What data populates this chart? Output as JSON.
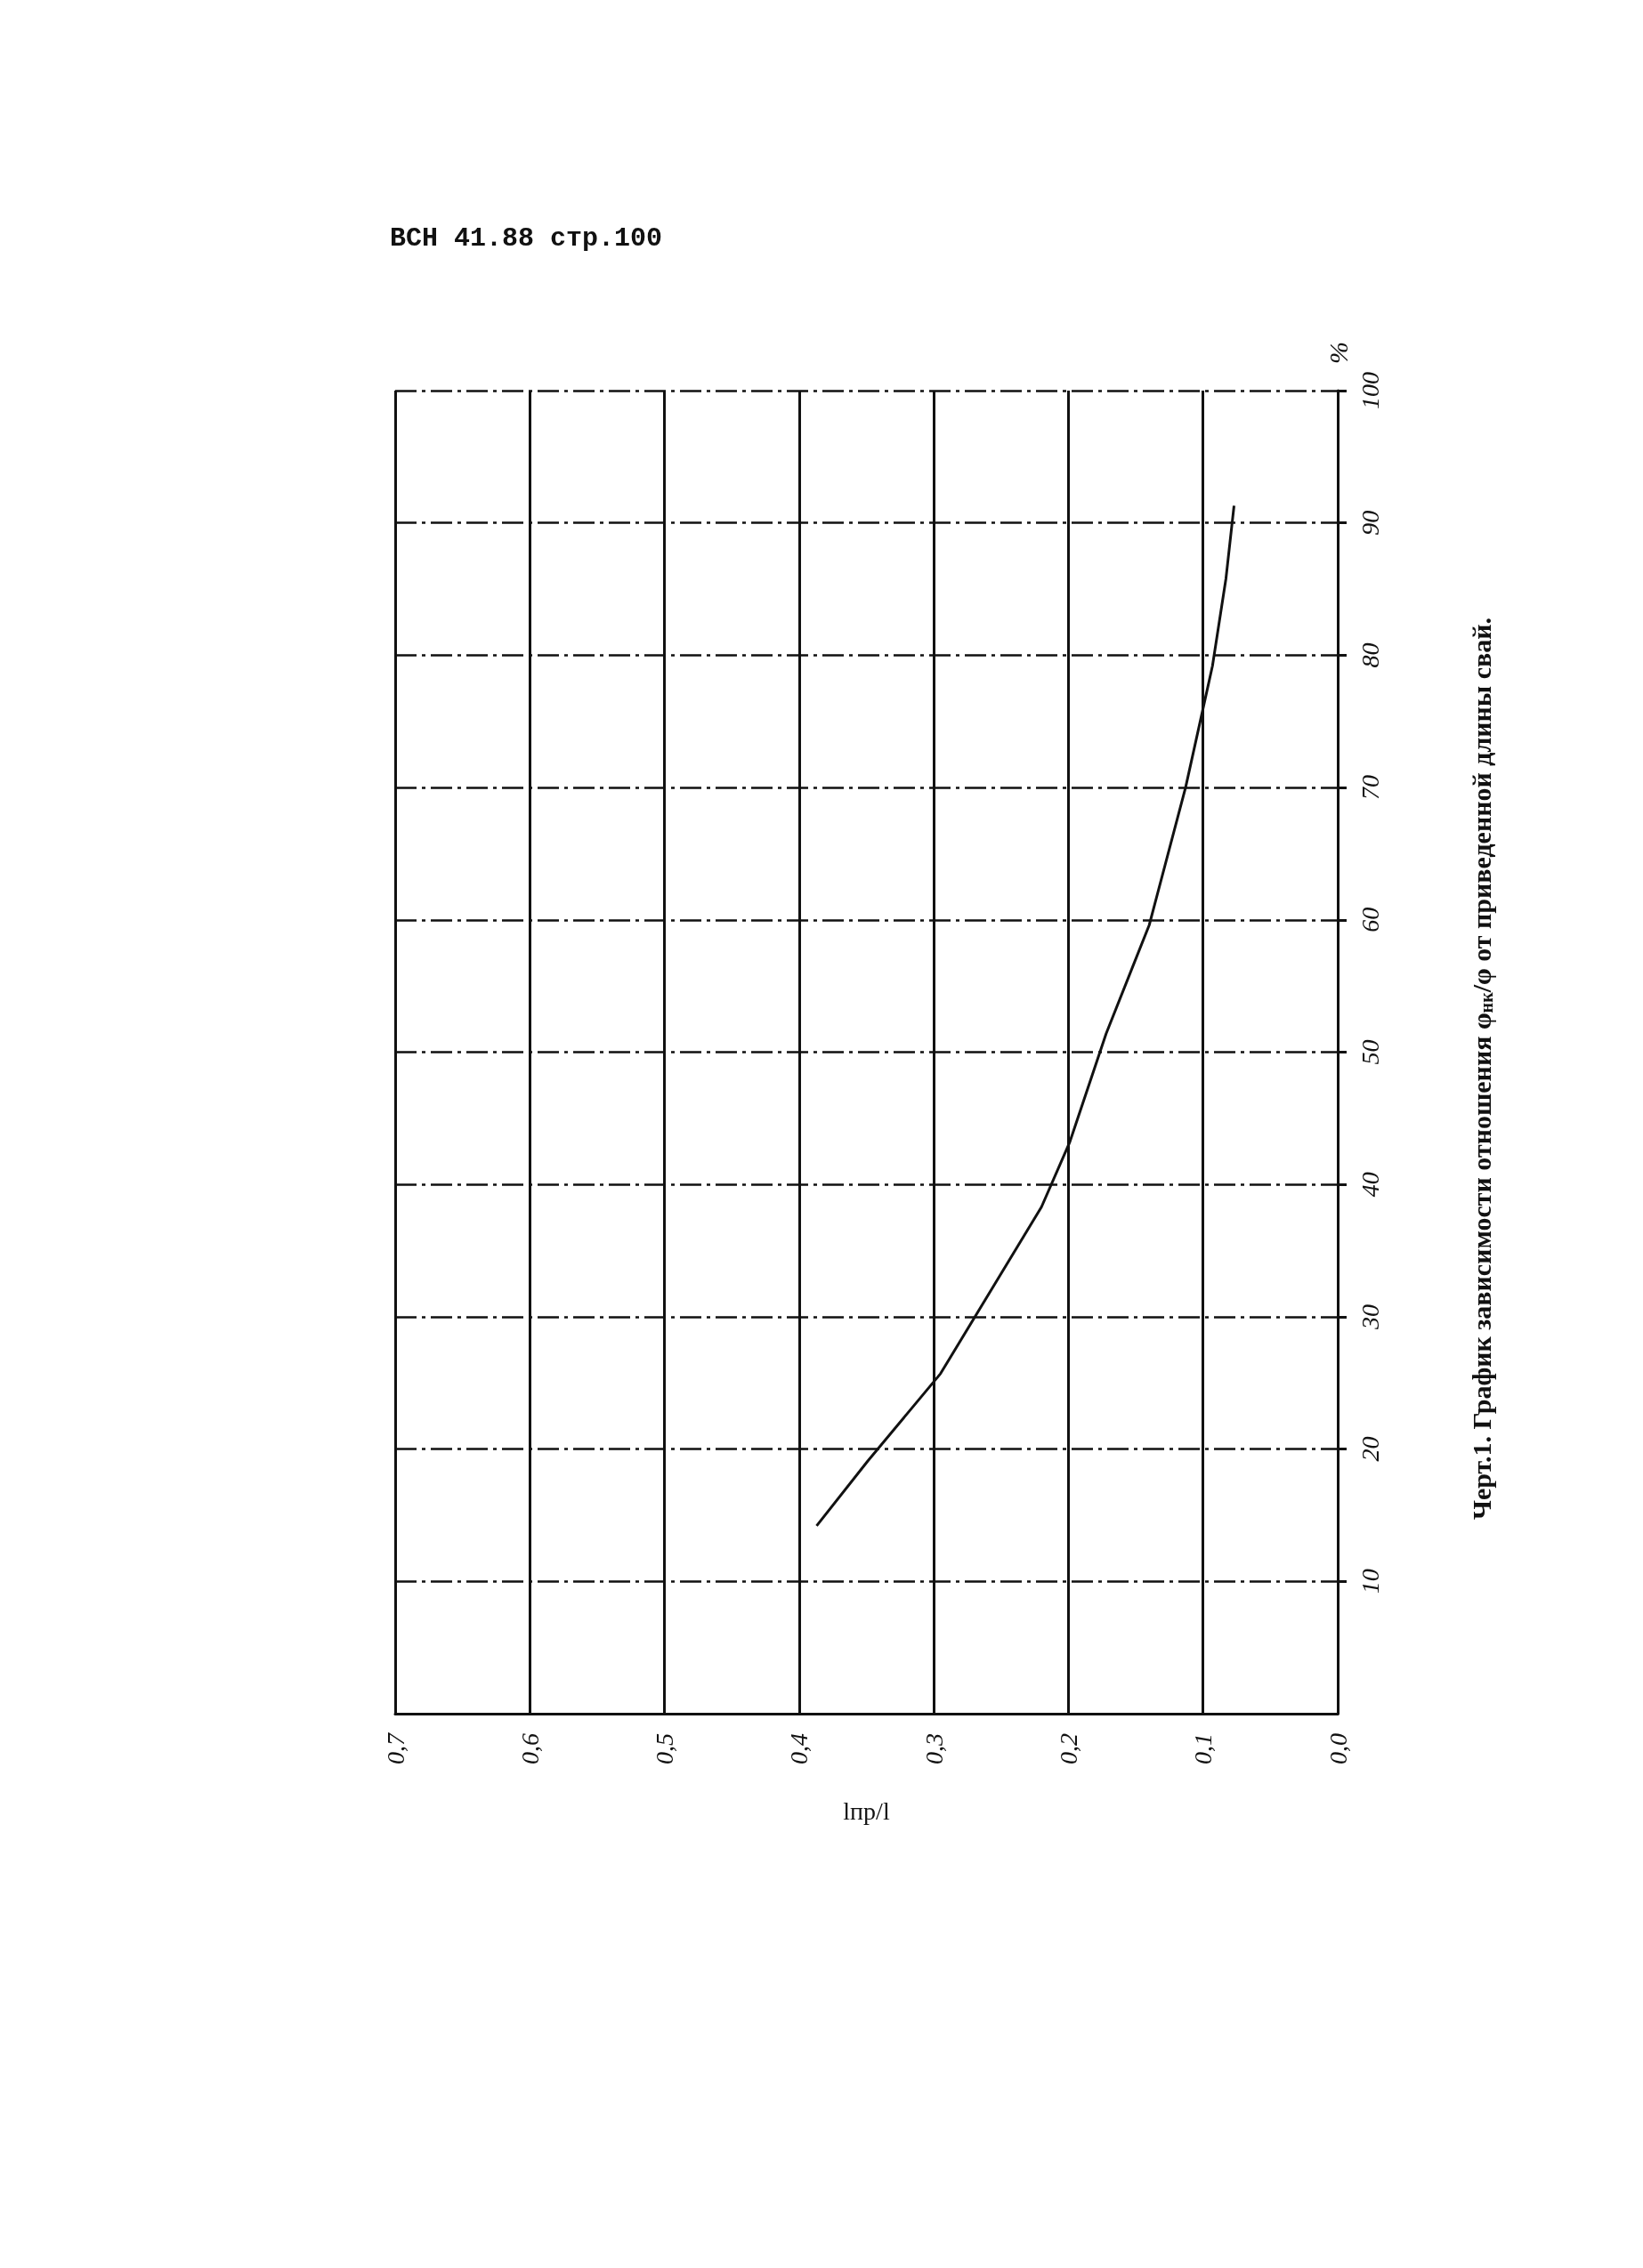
{
  "chart_data": {
    "type": "line",
    "title": "Черт.1. График зависимости отношения φ$_{нк}$/φ от приведенной длины свай.",
    "xlabel": "lпр/l",
    "ylabel": "%",
    "annotations": [
      "ВСН 41.88 стр.100"
    ],
    "xlim": [
      0.7,
      0
    ],
    "xticks": [
      {
        "value": 0,
        "label": "0,0"
      },
      {
        "value": 0.1,
        "label": "0,1"
      },
      {
        "value": 0.2,
        "label": "0,2"
      },
      {
        "value": 0.3,
        "label": "0,3"
      },
      {
        "value": 0.4,
        "label": "0,4"
      },
      {
        "value": 0.5,
        "label": "0,5"
      },
      {
        "value": 0.6,
        "label": "0,6"
      },
      {
        "value": 0.7,
        "label": "0,7"
      }
    ],
    "ylim": [
      0,
      100
    ],
    "yticks": [
      10,
      20,
      30,
      40,
      50,
      60,
      70,
      80,
      90,
      100
    ],
    "grid": true,
    "marker": "none",
    "line_style": "solid",
    "x": [
      0.387,
      0.349,
      0.295,
      0.22,
      0.199,
      0.172,
      0.14,
      0.113,
      0.093,
      0.083,
      0.077
    ],
    "series": [
      {
        "color": "#111111",
        "values": [
          14.2,
          19.1,
          25.7,
          38.3,
          43.2,
          51.4,
          59.6,
          70,
          79.2,
          85.8,
          91.3
        ]
      }
    ]
  }
}
